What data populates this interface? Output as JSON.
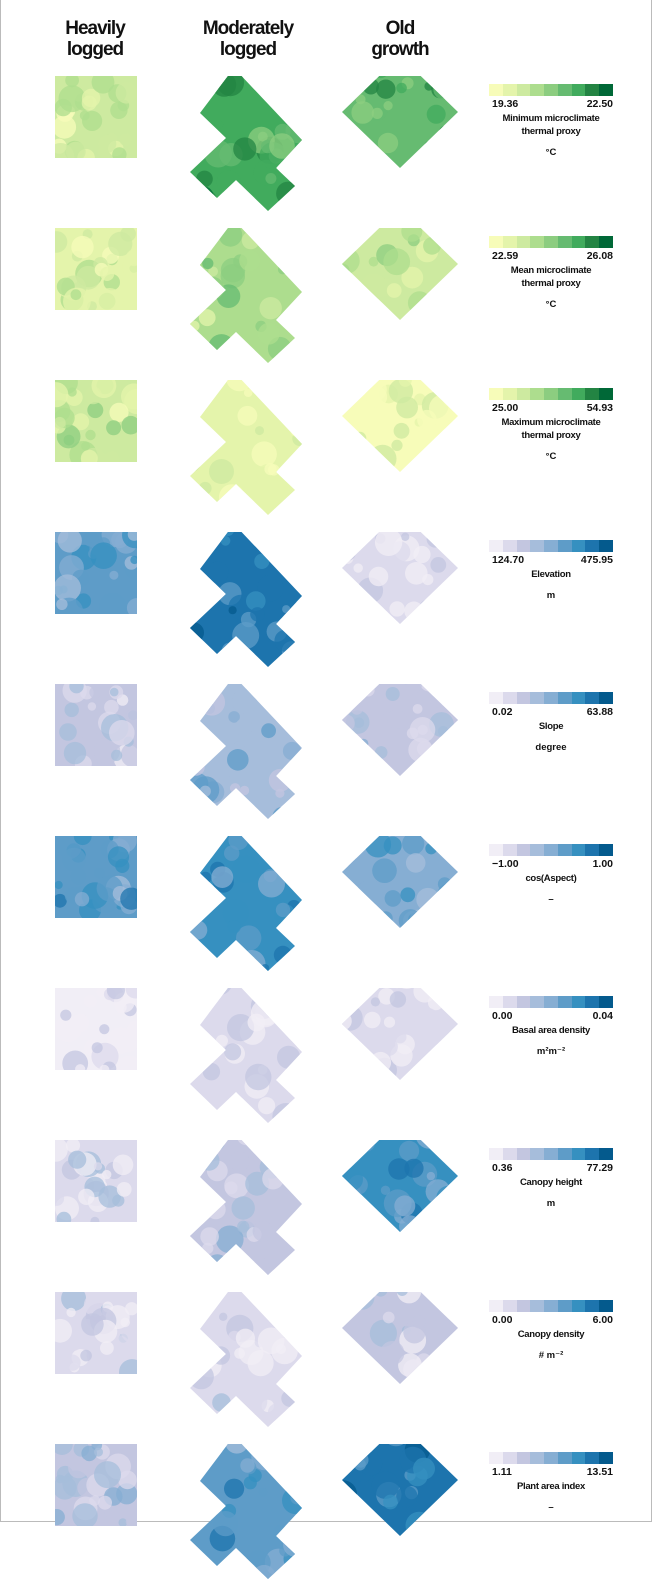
{
  "columns": [
    {
      "line1": "Heavily",
      "line2": "logged"
    },
    {
      "line1": "Moderately",
      "line2": "logged"
    },
    {
      "line1": "Old",
      "line2": "growth"
    }
  ],
  "palettes": {
    "green": [
      "#f7fcb9",
      "#e4f4ab",
      "#cdeaa0",
      "#addd8e",
      "#8ccd80",
      "#66bb71",
      "#41ab5d",
      "#238443",
      "#006837"
    ],
    "blue": [
      "#f1eef6",
      "#dcdaec",
      "#c3c6e0",
      "#a6bddb",
      "#86aed3",
      "#5e9cc8",
      "#3690c0",
      "#1d74ad",
      "#045a8d"
    ]
  },
  "rows": [
    {
      "min": "19.36",
      "max": "22.50",
      "title1": "Minimum microclimate",
      "title2": "thermal proxy",
      "unit": "°C",
      "palette": "green",
      "levels": {
        "hl": 0.22,
        "ml": 0.72,
        "og": 0.66
      }
    },
    {
      "min": "22.59",
      "max": "26.08",
      "title1": "Mean microclimate",
      "title2": "thermal proxy",
      "unit": "°C",
      "palette": "green",
      "levels": {
        "hl": 0.18,
        "ml": 0.38,
        "og": 0.28
      }
    },
    {
      "min": "25.00",
      "max": "54.93",
      "title1": "Maximum microclimate",
      "title2": "thermal proxy",
      "unit": "°C",
      "palette": "green",
      "levels": {
        "hl": 0.28,
        "ml": 0.12,
        "og": 0.06
      }
    },
    {
      "min": "124.70",
      "max": "475.95",
      "title1": "Elevation",
      "title2": "",
      "unit": "m",
      "palette": "blue",
      "levels": {
        "hl": 0.6,
        "ml": 0.82,
        "og": 0.1
      }
    },
    {
      "min": "0.02",
      "max": "63.88",
      "title1": "Slope",
      "title2": "",
      "unit": "degree",
      "palette": "blue",
      "levels": {
        "hl": 0.22,
        "ml": 0.42,
        "og": 0.3
      }
    },
    {
      "min": "−1.00",
      "max": "1.00",
      "title1": "cos(Aspect)",
      "title2": "",
      "unit": "–",
      "palette": "blue",
      "levels": {
        "hl": 0.62,
        "ml": 0.7,
        "og": 0.55
      }
    },
    {
      "min": "0.00",
      "max": "0.04",
      "title1": "Basal area density",
      "title2": "",
      "unit": "m²m⁻²",
      "palette": "blue",
      "levels": {
        "hl": 0.04,
        "ml": 0.08,
        "og": 0.08
      }
    },
    {
      "min": "0.36",
      "max": "77.29",
      "title1": "Canopy height",
      "title2": "",
      "unit": "m",
      "palette": "blue",
      "levels": {
        "hl": 0.18,
        "ml": 0.3,
        "og": 0.7
      }
    },
    {
      "min": "0.00",
      "max": "6.00",
      "title1": "Canopy density",
      "title2": "",
      "unit": "# m⁻²",
      "palette": "blue",
      "levels": {
        "hl": 0.12,
        "ml": 0.1,
        "og": 0.2
      }
    },
    {
      "min": "1.11",
      "max": "13.51",
      "title1": "Plant area index",
      "title2": "",
      "unit": "–",
      "palette": "blue",
      "levels": {
        "hl": 0.3,
        "ml": 0.62,
        "og": 0.82
      }
    }
  ]
}
